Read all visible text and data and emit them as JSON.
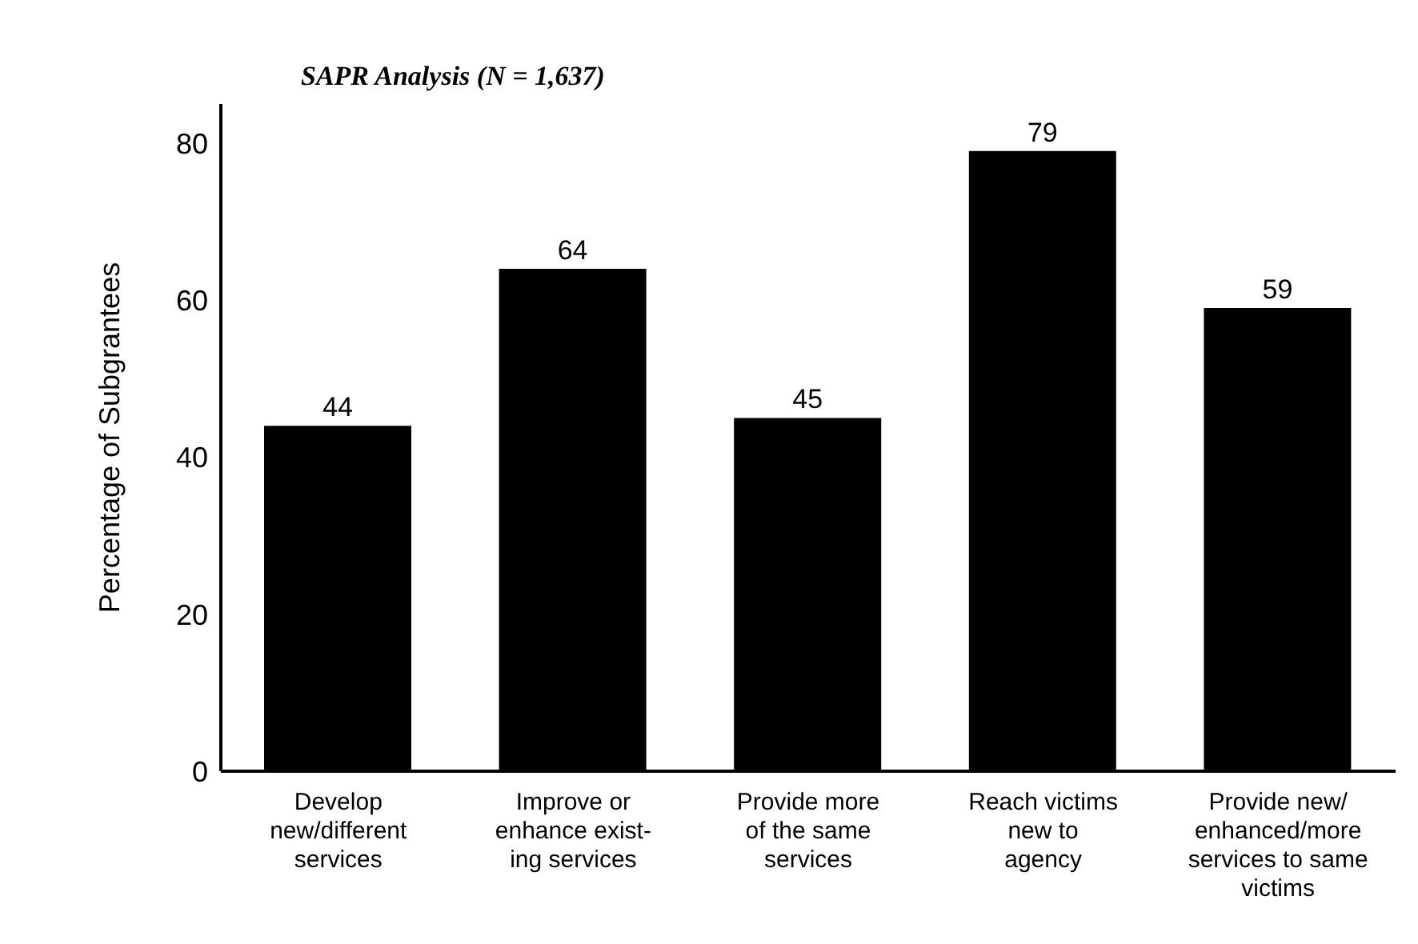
{
  "chart_data": {
    "type": "bar",
    "subtitle": "SAPR Analysis (N = 1,637)",
    "ylabel": "Percentage of Subgrantees",
    "categories": [
      "Develop\nnew/different\nservices",
      "Improve or\nenhance exist-\ning services",
      "Provide more\nof the same\nservices",
      "Reach victims\nnew to\nagency",
      "Provide new/\nenhanced/more\nservices to same\nvictims"
    ],
    "values": [
      44,
      64,
      45,
      79,
      59
    ],
    "color": "#000000",
    "ylim": [
      0,
      85
    ],
    "yticks": [
      0,
      20,
      40,
      60,
      80
    ],
    "grid": false,
    "data_labels": true
  }
}
